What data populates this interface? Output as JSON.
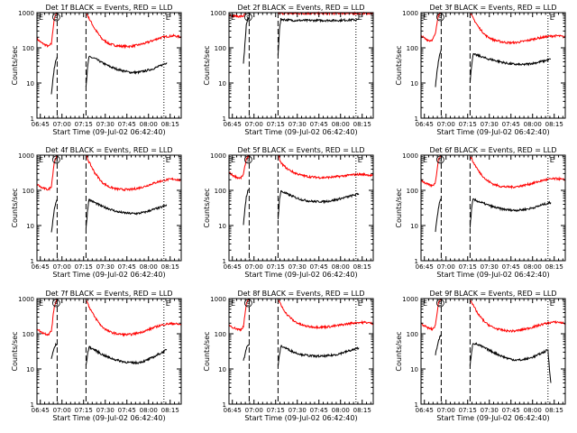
{
  "figure": {
    "x_axis_label": "Start Time (09-Jul-02 06:42:40)",
    "y_axis_label": "Counts/sec",
    "x_tick_labels": [
      "06:45",
      "07:00",
      "07:15",
      "07:30",
      "07:45",
      "08:00",
      "08:15"
    ],
    "y_tick_labels": [
      "1",
      "10",
      "100",
      "1000"
    ],
    "colors": {
      "events": "#000000",
      "lld": "#ff0000",
      "axes": "#000000",
      "background": "#ffffff"
    },
    "marker_letters": {
      "start": "E",
      "circle": "S",
      "end": "E"
    }
  },
  "chart_data": [
    {
      "type": "line",
      "title": "Det 1f BLACK = Events, RED = LLD",
      "xlabel": "Start Time (09-Jul-02 06:42:40)",
      "ylabel": "Counts/sec",
      "x_unit": "minutes after 06:42:40",
      "xlim": [
        0,
        100
      ],
      "ylim": [
        1,
        1000
      ],
      "yscale": "log",
      "x_ticks": [
        "06:45",
        "07:00",
        "07:15",
        "07:30",
        "07:45",
        "08:00",
        "08:15"
      ],
      "dashed_vlines": [
        14,
        34
      ],
      "dotted_vlines": [
        88
      ],
      "series": [
        {
          "color": "#ff0000",
          "x": [
            0,
            3,
            6,
            8,
            10,
            12,
            14,
            34,
            36,
            40,
            45,
            50,
            55,
            60,
            65,
            70,
            75,
            80,
            85,
            90,
            95,
            100
          ],
          "y": [
            180,
            140,
            120,
            110,
            130,
            700,
            1000,
            1000,
            700,
            350,
            180,
            130,
            115,
            110,
            110,
            120,
            135,
            160,
            190,
            210,
            220,
            200
          ]
        },
        {
          "color": "#000000",
          "x": [
            10,
            11,
            12,
            13,
            14,
            34,
            35,
            36,
            40,
            45,
            50,
            55,
            60,
            65,
            70,
            75,
            80,
            85,
            90
          ],
          "y": [
            5,
            12,
            25,
            45,
            55,
            8,
            25,
            55,
            50,
            38,
            30,
            25,
            22,
            20,
            20,
            22,
            25,
            30,
            38
          ]
        }
      ]
    },
    {
      "type": "line",
      "title": "Det 2f BLACK = Events, RED = LLD",
      "xlabel": "Start Time (09-Jul-02 06:42:40)",
      "ylabel": "Counts/sec",
      "x_unit": "minutes after 06:42:40",
      "xlim": [
        0,
        100
      ],
      "ylim": [
        1,
        1000
      ],
      "yscale": "log",
      "x_ticks": [
        "06:45",
        "07:00",
        "07:15",
        "07:30",
        "07:45",
        "08:00",
        "08:15"
      ],
      "dashed_vlines": [
        14,
        34
      ],
      "dotted_vlines": [
        88
      ],
      "series": [
        {
          "color": "#ff0000",
          "x": [
            0,
            4,
            8,
            10,
            12,
            14,
            34,
            36,
            40,
            45,
            50,
            55,
            60,
            65,
            70,
            75,
            80,
            85,
            90,
            95,
            100
          ],
          "y": [
            850,
            800,
            780,
            800,
            1000,
            1000,
            1000,
            950,
            950,
            950,
            950,
            950,
            950,
            950,
            950,
            950,
            950,
            950,
            950,
            950,
            950
          ]
        },
        {
          "color": "#000000",
          "x": [
            10,
            11,
            12,
            13,
            14,
            34,
            35,
            36,
            40,
            45,
            50,
            55,
            60,
            65,
            70,
            75,
            80,
            85,
            90
          ],
          "y": [
            35,
            120,
            450,
            650,
            700,
            60,
            350,
            650,
            620,
            600,
            600,
            600,
            600,
            600,
            600,
            600,
            610,
            620,
            630
          ]
        }
      ]
    },
    {
      "type": "line",
      "title": "Det 3f BLACK = Events, RED = LLD",
      "xlabel": "Start Time (09-Jul-02 06:42:40)",
      "ylabel": "Counts/sec",
      "x_unit": "minutes after 06:42:40",
      "xlim": [
        0,
        100
      ],
      "ylim": [
        1,
        1000
      ],
      "yscale": "log",
      "x_ticks": [
        "06:45",
        "07:00",
        "07:15",
        "07:30",
        "07:45",
        "08:00",
        "08:15"
      ],
      "dashed_vlines": [
        14,
        34
      ],
      "dotted_vlines": [
        88
      ],
      "series": [
        {
          "color": "#ff0000",
          "x": [
            0,
            3,
            6,
            8,
            10,
            12,
            14,
            34,
            36,
            40,
            45,
            50,
            55,
            60,
            65,
            70,
            75,
            80,
            85,
            90,
            95,
            100
          ],
          "y": [
            220,
            180,
            160,
            170,
            250,
            900,
            1000,
            1000,
            700,
            380,
            220,
            170,
            150,
            140,
            140,
            150,
            165,
            185,
            200,
            215,
            220,
            200
          ]
        },
        {
          "color": "#000000",
          "x": [
            10,
            11,
            12,
            13,
            14,
            34,
            35,
            36,
            40,
            45,
            50,
            55,
            60,
            65,
            70,
            75,
            80,
            85,
            90
          ],
          "y": [
            8,
            20,
            40,
            70,
            90,
            10,
            30,
            65,
            60,
            50,
            45,
            40,
            36,
            34,
            33,
            35,
            38,
            42,
            48
          ]
        }
      ]
    },
    {
      "type": "line",
      "title": "Det 4f BLACK = Events, RED = LLD",
      "xlabel": "Start Time (09-Jul-02 06:42:40)",
      "ylabel": "Counts/sec",
      "x_unit": "minutes after 06:42:40",
      "xlim": [
        0,
        100
      ],
      "ylim": [
        1,
        1000
      ],
      "yscale": "log",
      "x_ticks": [
        "06:45",
        "07:00",
        "07:15",
        "07:30",
        "07:45",
        "08:00",
        "08:15"
      ],
      "dashed_vlines": [
        14,
        34
      ],
      "dotted_vlines": [
        88
      ],
      "series": [
        {
          "color": "#ff0000",
          "x": [
            0,
            3,
            6,
            8,
            10,
            12,
            14,
            34,
            36,
            40,
            45,
            50,
            55,
            60,
            65,
            70,
            75,
            80,
            85,
            90,
            95,
            100
          ],
          "y": [
            150,
            120,
            110,
            105,
            130,
            650,
            1000,
            1000,
            650,
            320,
            170,
            125,
            110,
            105,
            105,
            115,
            130,
            155,
            180,
            200,
            210,
            190
          ]
        },
        {
          "color": "#000000",
          "x": [
            10,
            11,
            12,
            13,
            14,
            34,
            35,
            36,
            40,
            45,
            50,
            55,
            60,
            65,
            70,
            75,
            80,
            85,
            90
          ],
          "y": [
            6,
            14,
            28,
            45,
            55,
            8,
            25,
            55,
            45,
            35,
            30,
            25,
            23,
            22,
            22,
            24,
            28,
            32,
            38
          ]
        }
      ]
    },
    {
      "type": "line",
      "title": "Det 5f BLACK = Events, RED = LLD",
      "xlabel": "Start Time (09-Jul-02 06:42:40)",
      "ylabel": "Counts/sec",
      "x_unit": "minutes after 06:42:40",
      "xlim": [
        0,
        100
      ],
      "ylim": [
        1,
        1000
      ],
      "yscale": "log",
      "x_ticks": [
        "06:45",
        "07:00",
        "07:15",
        "07:30",
        "07:45",
        "08:00",
        "08:15"
      ],
      "dashed_vlines": [
        14,
        34
      ],
      "dotted_vlines": [
        88
      ],
      "series": [
        {
          "color": "#ff0000",
          "x": [
            0,
            3,
            6,
            8,
            10,
            12,
            14,
            34,
            36,
            40,
            45,
            50,
            55,
            60,
            65,
            70,
            75,
            80,
            85,
            90,
            95,
            100
          ],
          "y": [
            320,
            260,
            230,
            220,
            280,
            800,
            1000,
            1000,
            600,
            420,
            320,
            270,
            245,
            235,
            230,
            235,
            245,
            260,
            275,
            285,
            280,
            260
          ]
        },
        {
          "color": "#000000",
          "x": [
            10,
            11,
            12,
            13,
            14,
            34,
            35,
            36,
            40,
            45,
            50,
            55,
            60,
            65,
            70,
            75,
            80,
            85,
            90
          ],
          "y": [
            10,
            30,
            65,
            95,
            105,
            15,
            55,
            95,
            80,
            65,
            55,
            50,
            48,
            48,
            50,
            55,
            62,
            70,
            80
          ]
        }
      ]
    },
    {
      "type": "line",
      "title": "Det 6f BLACK = Events, RED = LLD",
      "xlabel": "Start Time (09-Jul-02 06:42:40)",
      "ylabel": "Counts/sec",
      "x_unit": "minutes after 06:42:40",
      "xlim": [
        0,
        100
      ],
      "ylim": [
        1,
        1000
      ],
      "yscale": "log",
      "x_ticks": [
        "06:45",
        "07:00",
        "07:15",
        "07:30",
        "07:45",
        "08:00",
        "08:15"
      ],
      "dashed_vlines": [
        14,
        34
      ],
      "dotted_vlines": [
        88
      ],
      "series": [
        {
          "color": "#ff0000",
          "x": [
            0,
            3,
            6,
            8,
            10,
            12,
            14,
            34,
            36,
            40,
            45,
            50,
            55,
            60,
            65,
            70,
            75,
            80,
            85,
            90,
            95,
            100
          ],
          "y": [
            200,
            160,
            140,
            135,
            170,
            750,
            1000,
            1000,
            650,
            350,
            200,
            150,
            130,
            125,
            125,
            135,
            150,
            170,
            195,
            210,
            215,
            195
          ]
        },
        {
          "color": "#000000",
          "x": [
            10,
            11,
            12,
            13,
            14,
            34,
            35,
            36,
            40,
            45,
            50,
            55,
            60,
            65,
            70,
            75,
            80,
            85,
            90
          ],
          "y": [
            7,
            15,
            30,
            48,
            58,
            9,
            28,
            55,
            48,
            40,
            34,
            30,
            28,
            27,
            28,
            30,
            34,
            40,
            45
          ]
        }
      ]
    },
    {
      "type": "line",
      "title": "Det 7f BLACK = Events, RED = LLD",
      "xlabel": "Start Time (09-Jul-02 06:42:40)",
      "ylabel": "Counts/sec",
      "x_unit": "minutes after 06:42:40",
      "xlim": [
        0,
        100
      ],
      "ylim": [
        1,
        1000
      ],
      "yscale": "log",
      "x_ticks": [
        "06:45",
        "07:00",
        "07:15",
        "07:30",
        "07:45",
        "08:00",
        "08:15"
      ],
      "dashed_vlines": [
        14,
        34
      ],
      "dotted_vlines": [
        88
      ],
      "series": [
        {
          "color": "#ff0000",
          "x": [
            0,
            3,
            6,
            8,
            10,
            12,
            14,
            34,
            36,
            40,
            45,
            50,
            55,
            60,
            65,
            70,
            75,
            80,
            85,
            90,
            95,
            100
          ],
          "y": [
            140,
            110,
            100,
            95,
            120,
            600,
            1000,
            1000,
            600,
            300,
            160,
            115,
            100,
            95,
            95,
            105,
            120,
            145,
            170,
            190,
            195,
            180
          ]
        },
        {
          "color": "#000000",
          "x": [
            10,
            11,
            12,
            13,
            14,
            34,
            35,
            36,
            40,
            45,
            50,
            55,
            60,
            65,
            70,
            75,
            80,
            85,
            90
          ],
          "y": [
            20,
            28,
            40,
            48,
            52,
            12,
            25,
            42,
            35,
            26,
            21,
            18,
            16,
            15,
            15,
            17,
            21,
            27,
            35
          ]
        }
      ]
    },
    {
      "type": "line",
      "title": "Det 8f BLACK = Events, RED = LLD",
      "xlabel": "Start Time (09-Jul-02 06:42:40)",
      "ylabel": "Counts/sec",
      "x_unit": "minutes after 06:42:40",
      "xlim": [
        0,
        100
      ],
      "ylim": [
        1,
        1000
      ],
      "yscale": "log",
      "x_ticks": [
        "06:45",
        "07:00",
        "07:15",
        "07:30",
        "07:45",
        "08:00",
        "08:15"
      ],
      "dashed_vlines": [
        14,
        34
      ],
      "dotted_vlines": [
        88
      ],
      "series": [
        {
          "color": "#ff0000",
          "x": [
            0,
            3,
            6,
            8,
            10,
            12,
            14,
            34,
            36,
            40,
            45,
            50,
            55,
            60,
            65,
            70,
            75,
            80,
            85,
            90,
            95,
            100
          ],
          "y": [
            180,
            150,
            135,
            130,
            160,
            700,
            1000,
            1000,
            650,
            360,
            230,
            180,
            160,
            155,
            155,
            160,
            170,
            185,
            200,
            210,
            210,
            195
          ]
        },
        {
          "color": "#000000",
          "x": [
            10,
            11,
            12,
            13,
            14,
            34,
            35,
            36,
            40,
            45,
            50,
            55,
            60,
            65,
            70,
            75,
            80,
            85,
            90
          ],
          "y": [
            18,
            25,
            38,
            46,
            50,
            12,
            25,
            45,
            38,
            30,
            26,
            24,
            23,
            23,
            24,
            26,
            30,
            34,
            40
          ]
        }
      ]
    },
    {
      "type": "line",
      "title": "Det 9f BLACK = Events, RED = LLD",
      "xlabel": "Start Time (09-Jul-02 06:42:40)",
      "ylabel": "Counts/sec",
      "x_unit": "minutes after 06:42:40",
      "xlim": [
        0,
        100
      ],
      "ylim": [
        1,
        1000
      ],
      "yscale": "log",
      "x_ticks": [
        "06:45",
        "07:00",
        "07:15",
        "07:30",
        "07:45",
        "08:00",
        "08:15"
      ],
      "dashed_vlines": [
        14,
        34
      ],
      "dotted_vlines": [
        88
      ],
      "series": [
        {
          "color": "#ff0000",
          "x": [
            0,
            3,
            6,
            8,
            10,
            12,
            14,
            34,
            36,
            40,
            45,
            50,
            55,
            60,
            65,
            70,
            75,
            80,
            85,
            90,
            95,
            100
          ],
          "y": [
            200,
            160,
            140,
            135,
            170,
            750,
            1000,
            1000,
            650,
            340,
            200,
            150,
            130,
            120,
            120,
            130,
            145,
            165,
            190,
            210,
            215,
            195
          ]
        },
        {
          "color": "#000000",
          "x": [
            10,
            11,
            12,
            13,
            14,
            34,
            35,
            36,
            40,
            45,
            50,
            55,
            60,
            65,
            70,
            75,
            80,
            85,
            88,
            89,
            90
          ],
          "y": [
            25,
            40,
            60,
            80,
            90,
            12,
            30,
            55,
            48,
            38,
            30,
            24,
            20,
            18,
            18,
            20,
            24,
            30,
            35,
            10,
            4
          ]
        }
      ]
    }
  ]
}
